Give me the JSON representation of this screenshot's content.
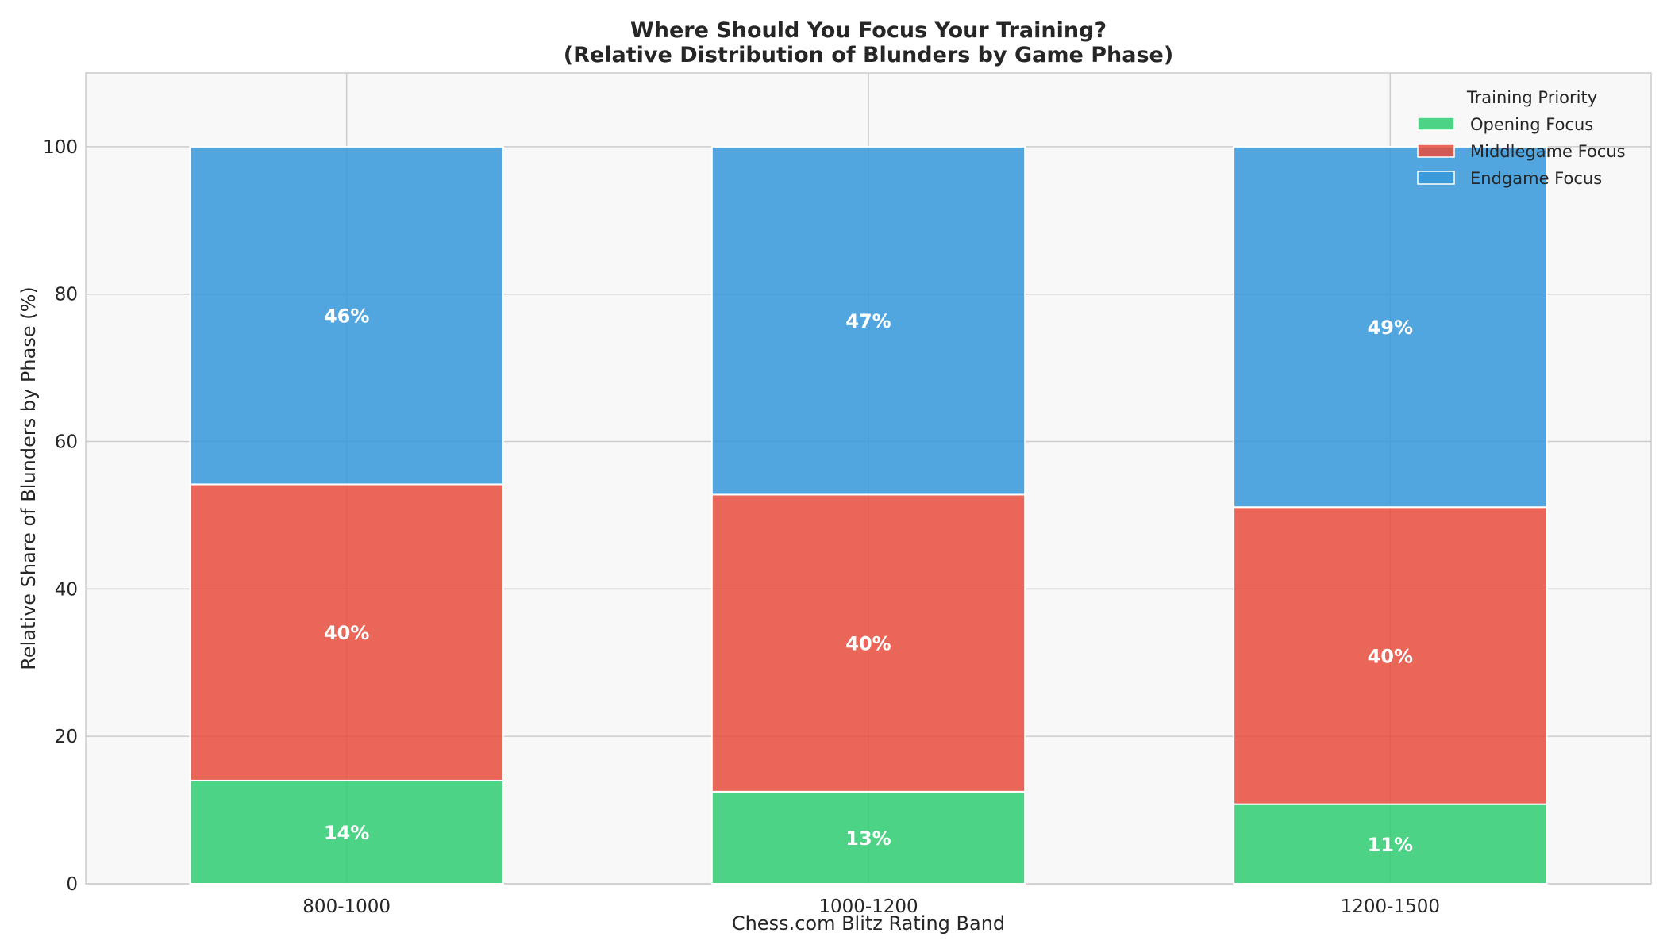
{
  "chart_data": {
    "type": "bar",
    "stacked": true,
    "title": "Where Should You Focus Your Training?",
    "subtitle": "(Relative Distribution of Blunders by Game Phase)",
    "xlabel": "Chess.com Blitz Rating Band",
    "ylabel": "Relative Share of Blunders by Phase (%)",
    "categories": [
      "800-1000",
      "1000-1200",
      "1200-1500"
    ],
    "ylim": [
      0,
      110
    ],
    "yticks": [
      0,
      20,
      40,
      60,
      80,
      100
    ],
    "grid": true,
    "legend": {
      "title": "Training Priority",
      "placement": "top-right"
    },
    "series": [
      {
        "name": "Opening Focus",
        "color": "#2ecc71",
        "values": [
          14.0,
          12.5,
          10.8
        ],
        "labels": [
          "14%",
          "13%",
          "11%"
        ]
      },
      {
        "name": "Middlegame Focus",
        "color": "#e74c3c",
        "values": [
          40.2,
          40.3,
          40.3
        ],
        "labels": [
          "40%",
          "40%",
          "40%"
        ]
      },
      {
        "name": "Endgame Focus",
        "color": "#3498db",
        "values": [
          45.8,
          47.2,
          48.9
        ],
        "labels": [
          "46%",
          "47%",
          "49%"
        ]
      }
    ]
  }
}
